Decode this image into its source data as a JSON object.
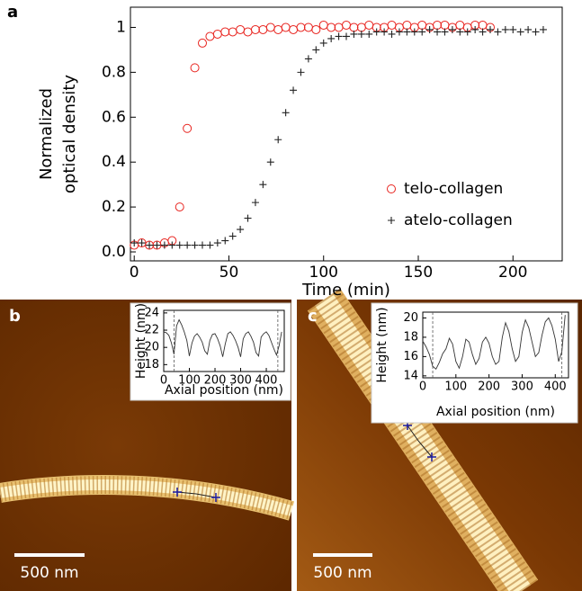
{
  "chart_data": [
    {
      "type": "scatter",
      "panel_label": "a",
      "xlabel": "Time (min)",
      "ylabel": [
        "Normalized",
        "optical density"
      ],
      "xlim": [
        -2,
        226
      ],
      "ylim": [
        -0.04,
        1.09
      ],
      "xticks": [
        0,
        50,
        100,
        150,
        200
      ],
      "yticks": [
        {
          "value": 0,
          "label": "0.0"
        },
        0.2,
        0.4,
        0.6,
        0.8,
        1
      ],
      "legend": "lower right",
      "series": [
        {
          "name": "telo-collagen",
          "color": "#e8241f",
          "marker": "circle",
          "x": [
            0,
            4,
            8,
            12,
            16,
            20,
            24,
            28,
            32,
            36,
            40,
            44,
            48,
            52,
            56,
            60,
            64,
            68,
            72,
            76,
            80,
            84,
            88,
            92,
            96,
            100,
            104,
            108,
            112,
            116,
            120,
            124,
            128,
            132,
            136,
            140,
            144,
            148,
            152,
            156,
            160,
            164,
            168,
            172,
            176,
            180,
            184,
            188
          ],
          "values": [
            0.03,
            0.04,
            0.03,
            0.03,
            0.04,
            0.05,
            0.2,
            0.55,
            0.82,
            0.93,
            0.96,
            0.97,
            0.98,
            0.98,
            0.99,
            0.98,
            0.99,
            0.99,
            1.0,
            0.99,
            1.0,
            0.99,
            1.0,
            1.0,
            0.99,
            1.01,
            1.0,
            1.0,
            1.01,
            1.0,
            1.0,
            1.01,
            1.0,
            1.0,
            1.01,
            1.0,
            1.01,
            1.0,
            1.01,
            1.0,
            1.01,
            1.01,
            1.0,
            1.01,
            1.0,
            1.01,
            1.01,
            1.0
          ]
        },
        {
          "name": "atelo-collagen",
          "color": "#222222",
          "marker": "plus",
          "x": [
            0,
            4,
            8,
            12,
            16,
            20,
            24,
            28,
            32,
            36,
            40,
            44,
            48,
            52,
            56,
            60,
            64,
            68,
            72,
            76,
            80,
            84,
            88,
            92,
            96,
            100,
            104,
            108,
            112,
            116,
            120,
            124,
            128,
            132,
            136,
            140,
            144,
            148,
            152,
            156,
            160,
            164,
            168,
            172,
            176,
            180,
            184,
            188,
            192,
            196,
            200,
            204,
            208,
            212,
            216
          ],
          "values": [
            0.04,
            0.04,
            0.03,
            0.03,
            0.03,
            0.03,
            0.03,
            0.03,
            0.03,
            0.03,
            0.03,
            0.04,
            0.05,
            0.07,
            0.1,
            0.15,
            0.22,
            0.3,
            0.4,
            0.5,
            0.62,
            0.72,
            0.8,
            0.86,
            0.9,
            0.93,
            0.95,
            0.96,
            0.96,
            0.97,
            0.97,
            0.97,
            0.98,
            0.98,
            0.97,
            0.98,
            0.98,
            0.98,
            0.98,
            0.99,
            0.98,
            0.98,
            0.99,
            0.98,
            0.98,
            0.99,
            0.98,
            0.99,
            0.98,
            0.99,
            0.99,
            0.98,
            0.99,
            0.98,
            0.99
          ]
        }
      ]
    },
    {
      "type": "line",
      "panel_label": "b",
      "scale_bar": "500 nm",
      "color": "#333333",
      "xlabel": "Axial position (nm)",
      "ylabel": "Height (nm)",
      "xlim": [
        0,
        470
      ],
      "ylim": [
        17.2,
        24.3
      ],
      "xticks": [
        0,
        100,
        200,
        300,
        400
      ],
      "yticks": [
        18,
        20,
        22,
        24
      ],
      "vlines": [
        40,
        445
      ],
      "x": [
        0,
        10,
        20,
        30,
        40,
        50,
        60,
        70,
        80,
        90,
        100,
        110,
        120,
        130,
        140,
        150,
        160,
        170,
        180,
        190,
        200,
        210,
        220,
        230,
        240,
        250,
        260,
        270,
        280,
        290,
        300,
        310,
        320,
        330,
        340,
        350,
        360,
        370,
        380,
        390,
        400,
        410,
        420,
        430,
        440,
        450,
        460
      ],
      "values": [
        21.8,
        21.7,
        21.4,
        20.5,
        19.2,
        22.5,
        23.2,
        22.6,
        21.8,
        20.8,
        19.0,
        20.5,
        21.3,
        21.6,
        21.2,
        20.6,
        19.6,
        19.2,
        20.8,
        21.5,
        21.6,
        21.0,
        20.2,
        18.9,
        20.4,
        21.6,
        21.8,
        21.4,
        20.8,
        20.0,
        18.9,
        21.0,
        21.6,
        21.8,
        21.3,
        20.6,
        19.4,
        19.0,
        21.2,
        21.6,
        21.8,
        21.4,
        20.6,
        19.8,
        19.1,
        20.2,
        21.8
      ]
    },
    {
      "type": "line",
      "panel_label": "c",
      "scale_bar": "500 nm",
      "color": "#333333",
      "xlabel": "Axial position (nm)",
      "ylabel": "Height (nm)",
      "xlim": [
        0,
        440
      ],
      "ylim": [
        13.8,
        20.6
      ],
      "xticks": [
        0,
        100,
        200,
        300,
        400
      ],
      "yticks": [
        14,
        16,
        18,
        20
      ],
      "vlines": [
        30,
        420
      ],
      "x": [
        0,
        10,
        20,
        30,
        40,
        50,
        60,
        70,
        80,
        90,
        100,
        110,
        120,
        130,
        140,
        150,
        160,
        170,
        180,
        190,
        200,
        210,
        220,
        230,
        240,
        250,
        260,
        270,
        280,
        290,
        300,
        310,
        320,
        330,
        340,
        350,
        360,
        370,
        380,
        390,
        400,
        410,
        420,
        430
      ],
      "values": [
        17.6,
        17.0,
        16.2,
        15.0,
        14.7,
        15.4,
        16.3,
        16.8,
        17.9,
        17.3,
        15.5,
        14.8,
        16.0,
        17.8,
        17.5,
        16.2,
        15.2,
        15.8,
        17.5,
        18.0,
        17.4,
        16.0,
        15.2,
        15.5,
        18.0,
        19.5,
        18.6,
        16.8,
        15.5,
        16.0,
        18.5,
        19.8,
        19.0,
        17.5,
        16.0,
        16.4,
        18.2,
        19.6,
        20.0,
        19.2,
        17.8,
        15.5,
        16.5,
        20.3
      ]
    }
  ]
}
